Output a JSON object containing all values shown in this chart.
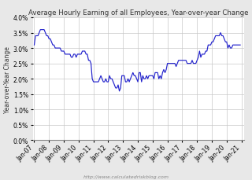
{
  "title": "Average Hourly Earning of all Employees, Year-over-year Change",
  "ylabel": "Year-over-Year Change",
  "watermark": "http://www.calculatedriskblog.com",
  "ylim": [
    0.0,
    0.04
  ],
  "yticks": [
    0.0,
    0.005,
    0.01,
    0.015,
    0.02,
    0.025,
    0.03,
    0.035,
    0.04
  ],
  "line_color": "#2222cc",
  "bg_color": "#e8e8e8",
  "plot_bg": "#ffffff",
  "x_start_year": 2007,
  "x_end_year": 2021,
  "xtick_years": [
    2007,
    2008,
    2009,
    2010,
    2011,
    2012,
    2013,
    2014,
    2015,
    2016,
    2017,
    2018,
    2019,
    2020,
    2021
  ],
  "data": [
    [
      2007,
      1,
      0.031
    ],
    [
      2007,
      2,
      0.034
    ],
    [
      2007,
      3,
      0.034
    ],
    [
      2007,
      4,
      0.034
    ],
    [
      2007,
      5,
      0.035
    ],
    [
      2007,
      6,
      0.036
    ],
    [
      2007,
      7,
      0.036
    ],
    [
      2007,
      8,
      0.036
    ],
    [
      2007,
      9,
      0.036
    ],
    [
      2007,
      10,
      0.035
    ],
    [
      2007,
      11,
      0.034
    ],
    [
      2007,
      12,
      0.034
    ],
    [
      2008,
      1,
      0.033
    ],
    [
      2008,
      2,
      0.033
    ],
    [
      2008,
      3,
      0.032
    ],
    [
      2008,
      4,
      0.031
    ],
    [
      2008,
      5,
      0.031
    ],
    [
      2008,
      6,
      0.03
    ],
    [
      2008,
      7,
      0.03
    ],
    [
      2008,
      8,
      0.03
    ],
    [
      2008,
      9,
      0.03
    ],
    [
      2008,
      10,
      0.03
    ],
    [
      2008,
      11,
      0.029
    ],
    [
      2008,
      12,
      0.029
    ],
    [
      2009,
      1,
      0.029
    ],
    [
      2009,
      2,
      0.028
    ],
    [
      2009,
      3,
      0.028
    ],
    [
      2009,
      4,
      0.028
    ],
    [
      2009,
      5,
      0.028
    ],
    [
      2009,
      6,
      0.028
    ],
    [
      2009,
      7,
      0.027
    ],
    [
      2009,
      8,
      0.027
    ],
    [
      2009,
      9,
      0.028
    ],
    [
      2009,
      10,
      0.028
    ],
    [
      2009,
      11,
      0.027
    ],
    [
      2009,
      12,
      0.028
    ],
    [
      2010,
      1,
      0.028
    ],
    [
      2010,
      2,
      0.028
    ],
    [
      2010,
      3,
      0.028
    ],
    [
      2010,
      4,
      0.029
    ],
    [
      2010,
      5,
      0.029
    ],
    [
      2010,
      6,
      0.029
    ],
    [
      2010,
      7,
      0.028
    ],
    [
      2010,
      8,
      0.028
    ],
    [
      2010,
      9,
      0.026
    ],
    [
      2010,
      10,
      0.026
    ],
    [
      2010,
      11,
      0.025
    ],
    [
      2010,
      12,
      0.02
    ],
    [
      2011,
      1,
      0.019
    ],
    [
      2011,
      2,
      0.019
    ],
    [
      2011,
      3,
      0.019
    ],
    [
      2011,
      4,
      0.019
    ],
    [
      2011,
      5,
      0.019
    ],
    [
      2011,
      6,
      0.02
    ],
    [
      2011,
      7,
      0.021
    ],
    [
      2011,
      8,
      0.02
    ],
    [
      2011,
      9,
      0.019
    ],
    [
      2011,
      10,
      0.019
    ],
    [
      2011,
      11,
      0.02
    ],
    [
      2011,
      12,
      0.019
    ],
    [
      2012,
      1,
      0.019
    ],
    [
      2012,
      2,
      0.021
    ],
    [
      2012,
      3,
      0.02
    ],
    [
      2012,
      4,
      0.02
    ],
    [
      2012,
      5,
      0.019
    ],
    [
      2012,
      6,
      0.018
    ],
    [
      2012,
      7,
      0.017
    ],
    [
      2012,
      8,
      0.017
    ],
    [
      2012,
      9,
      0.018
    ],
    [
      2012,
      10,
      0.016
    ],
    [
      2012,
      11,
      0.017
    ],
    [
      2012,
      12,
      0.021
    ],
    [
      2013,
      1,
      0.021
    ],
    [
      2013,
      2,
      0.021
    ],
    [
      2013,
      3,
      0.019
    ],
    [
      2013,
      4,
      0.019
    ],
    [
      2013,
      5,
      0.02
    ],
    [
      2013,
      6,
      0.019
    ],
    [
      2013,
      7,
      0.02
    ],
    [
      2013,
      8,
      0.021
    ],
    [
      2013,
      9,
      0.022
    ],
    [
      2013,
      10,
      0.021
    ],
    [
      2013,
      11,
      0.021
    ],
    [
      2013,
      12,
      0.02
    ],
    [
      2014,
      1,
      0.019
    ],
    [
      2014,
      2,
      0.022
    ],
    [
      2014,
      3,
      0.022
    ],
    [
      2014,
      4,
      0.019
    ],
    [
      2014,
      5,
      0.021
    ],
    [
      2014,
      6,
      0.02
    ],
    [
      2014,
      7,
      0.02
    ],
    [
      2014,
      8,
      0.021
    ],
    [
      2014,
      9,
      0.02
    ],
    [
      2014,
      10,
      0.021
    ],
    [
      2014,
      11,
      0.021
    ],
    [
      2014,
      12,
      0.021
    ],
    [
      2015,
      1,
      0.021
    ],
    [
      2015,
      2,
      0.02
    ],
    [
      2015,
      3,
      0.022
    ],
    [
      2015,
      4,
      0.022
    ],
    [
      2015,
      5,
      0.022
    ],
    [
      2015,
      6,
      0.02
    ],
    [
      2015,
      7,
      0.021
    ],
    [
      2015,
      8,
      0.02
    ],
    [
      2015,
      9,
      0.022
    ],
    [
      2015,
      10,
      0.023
    ],
    [
      2015,
      11,
      0.022
    ],
    [
      2015,
      12,
      0.023
    ],
    [
      2016,
      1,
      0.025
    ],
    [
      2016,
      2,
      0.025
    ],
    [
      2016,
      3,
      0.025
    ],
    [
      2016,
      4,
      0.025
    ],
    [
      2016,
      5,
      0.025
    ],
    [
      2016,
      6,
      0.025
    ],
    [
      2016,
      7,
      0.025
    ],
    [
      2016,
      8,
      0.024
    ],
    [
      2016,
      9,
      0.025
    ],
    [
      2016,
      10,
      0.026
    ],
    [
      2016,
      11,
      0.026
    ],
    [
      2016,
      12,
      0.026
    ],
    [
      2017,
      1,
      0.026
    ],
    [
      2017,
      2,
      0.026
    ],
    [
      2017,
      3,
      0.026
    ],
    [
      2017,
      4,
      0.026
    ],
    [
      2017,
      5,
      0.025
    ],
    [
      2017,
      6,
      0.025
    ],
    [
      2017,
      7,
      0.025
    ],
    [
      2017,
      8,
      0.025
    ],
    [
      2017,
      9,
      0.026
    ],
    [
      2017,
      10,
      0.025
    ],
    [
      2017,
      11,
      0.025
    ],
    [
      2017,
      12,
      0.025
    ],
    [
      2018,
      1,
      0.026
    ],
    [
      2018,
      2,
      0.027
    ],
    [
      2018,
      3,
      0.029
    ],
    [
      2018,
      4,
      0.027
    ],
    [
      2018,
      5,
      0.028
    ],
    [
      2018,
      6,
      0.028
    ],
    [
      2018,
      7,
      0.028
    ],
    [
      2018,
      8,
      0.029
    ],
    [
      2018,
      9,
      0.029
    ],
    [
      2018,
      10,
      0.031
    ],
    [
      2018,
      11,
      0.031
    ],
    [
      2018,
      12,
      0.031
    ],
    [
      2019,
      1,
      0.032
    ],
    [
      2019,
      2,
      0.032
    ],
    [
      2019,
      3,
      0.033
    ],
    [
      2019,
      4,
      0.034
    ],
    [
      2019,
      5,
      0.034
    ],
    [
      2019,
      6,
      0.034
    ],
    [
      2019,
      7,
      0.034
    ],
    [
      2019,
      8,
      0.035
    ],
    [
      2019,
      9,
      0.034
    ],
    [
      2019,
      10,
      0.034
    ],
    [
      2019,
      11,
      0.033
    ],
    [
      2019,
      12,
      0.032
    ],
    [
      2020,
      1,
      0.032
    ],
    [
      2020,
      2,
      0.03
    ],
    [
      2020,
      3,
      0.031
    ],
    [
      2020,
      4,
      0.03
    ],
    [
      2020,
      5,
      0.03
    ],
    [
      2020,
      6,
      0.031
    ],
    [
      2020,
      7,
      0.031
    ],
    [
      2020,
      8,
      0.031
    ],
    [
      2020,
      9,
      0.031
    ],
    [
      2020,
      10,
      0.031
    ],
    [
      2020,
      11,
      0.031
    ],
    [
      2020,
      12,
      0.031
    ]
  ]
}
